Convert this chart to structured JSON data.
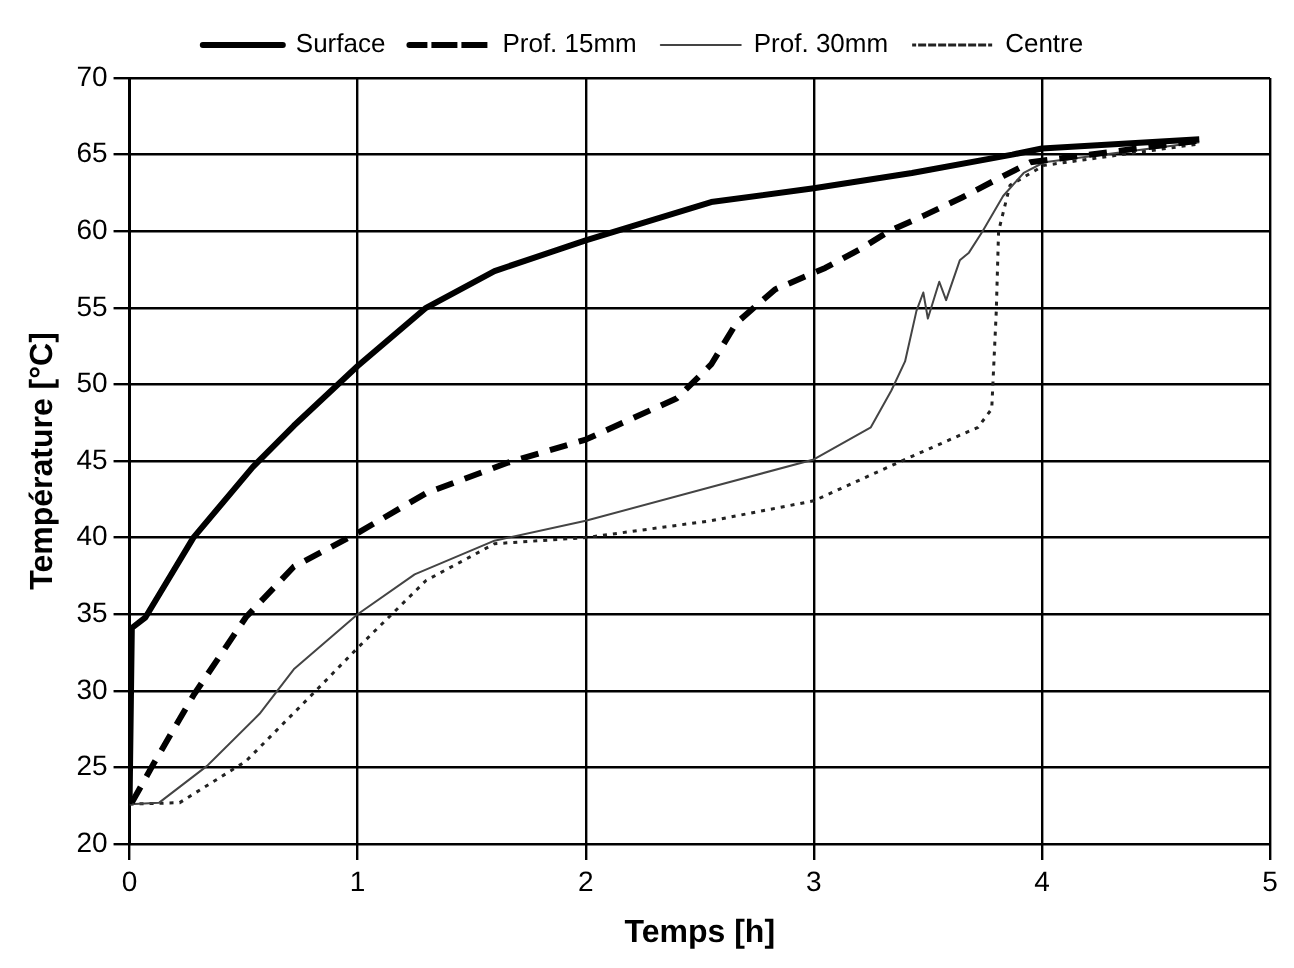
{
  "chart_data": {
    "type": "line",
    "xlabel": "Temps [h]",
    "ylabel": "Température [°C]",
    "xlim": [
      0,
      5
    ],
    "ylim": [
      20,
      70
    ],
    "xticks": [
      0,
      1,
      2,
      3,
      4,
      5
    ],
    "yticks": [
      20,
      25,
      30,
      35,
      40,
      45,
      50,
      55,
      60,
      65,
      70
    ],
    "grid": true,
    "legend": "top",
    "marker": "none",
    "series": [
      {
        "name": "Surface",
        "color": "#000000",
        "line_style": "solid",
        "x": [
          0,
          0.01,
          0.07,
          0.28,
          0.54,
          0.72,
          1,
          1.3,
          1.6,
          2,
          2.55,
          3,
          3.43,
          3.87,
          4,
          4.69
        ],
        "values": [
          22.6,
          34.1,
          34.8,
          40,
          44.6,
          47.3,
          51.2,
          55,
          57.4,
          59.4,
          61.9,
          62.8,
          63.8,
          65,
          65.4,
          66
        ]
      },
      {
        "name": "Prof. 15mm",
        "color": "#000000",
        "line_style": "dashed",
        "x": [
          0.01,
          0.1,
          0.28,
          0.51,
          0.72,
          1,
          1.3,
          1.66,
          2,
          2.4,
          2.55,
          2.66,
          2.83,
          3.05,
          3.2,
          3.33,
          3.48,
          3.65,
          3.83,
          3.95,
          4.68
        ],
        "values": [
          22.7,
          25.1,
          29.7,
          34.8,
          38.1,
          40.3,
          42.9,
          44.9,
          46.4,
          49.1,
          51.3,
          54,
          56.2,
          57.6,
          58.8,
          60,
          61,
          62.2,
          63.6,
          64.5,
          65.9
        ]
      },
      {
        "name": "Prof. 30mm",
        "color": "#444444",
        "line_style": "solid",
        "x": [
          0,
          0.13,
          0.34,
          0.57,
          0.72,
          1,
          1.25,
          1.6,
          2,
          2.55,
          3,
          3.25,
          3.34,
          3.4,
          3.45,
          3.48,
          3.5,
          3.55,
          3.58,
          3.64,
          3.68,
          3.74,
          3.83,
          3.92,
          4.01,
          4.69
        ],
        "values": [
          22.6,
          22.7,
          25.1,
          28.5,
          31.4,
          35,
          37.6,
          39.8,
          41.1,
          43.3,
          45.1,
          47.2,
          49.6,
          51.5,
          54.8,
          56,
          54.3,
          56.7,
          55.5,
          58.1,
          58.6,
          60,
          62.3,
          63.8,
          64.5,
          65.8
        ]
      },
      {
        "name": "Centre",
        "color": "#222222",
        "line_style": "dotted",
        "x": [
          0,
          0.22,
          0.51,
          0.81,
          1,
          1.3,
          1.6,
          2,
          2.55,
          3,
          3.43,
          3.72,
          3.78,
          3.8,
          3.81,
          3.86,
          4.01,
          4.69
        ],
        "values": [
          22.6,
          22.7,
          25.4,
          29.9,
          32.8,
          37.2,
          39.6,
          40,
          41.1,
          42.4,
          45.3,
          47.2,
          48.4,
          54.8,
          60,
          63,
          64.3,
          65.7
        ]
      }
    ]
  }
}
